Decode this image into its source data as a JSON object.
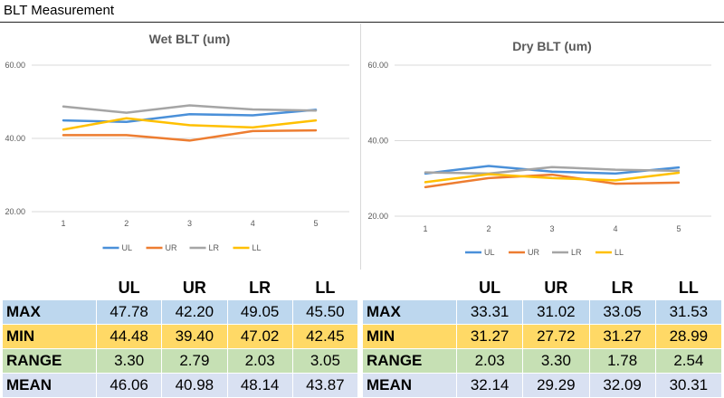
{
  "page_title": "BLT Measurement",
  "colors": {
    "UL": "#4a90d9",
    "UR": "#ed7d31",
    "LR": "#a5a5a5",
    "LL": "#ffc000"
  },
  "chart_data": [
    {
      "type": "line",
      "title": "Wet BLT (um)",
      "xlabel": "",
      "ylabel": "",
      "x": [
        1,
        2,
        3,
        4,
        5
      ],
      "ylim": [
        20,
        60
      ],
      "yticks": [
        "20.00",
        "40.00",
        "60.00"
      ],
      "grid": true,
      "legend": "bottom",
      "series": [
        {
          "name": "UL",
          "values": [
            44.9,
            44.5,
            46.6,
            46.3,
            47.8
          ]
        },
        {
          "name": "UR",
          "values": [
            40.9,
            40.9,
            39.4,
            42.0,
            42.2
          ]
        },
        {
          "name": "LR",
          "values": [
            48.7,
            47.0,
            49.0,
            47.9,
            47.6
          ]
        },
        {
          "name": "LL",
          "values": [
            42.4,
            45.5,
            43.6,
            43.0,
            44.9
          ]
        }
      ]
    },
    {
      "type": "line",
      "title": "Dry BLT (um)",
      "xlabel": "",
      "ylabel": "",
      "x": [
        1,
        2,
        3,
        4,
        5
      ],
      "ylim": [
        20,
        60
      ],
      "yticks": [
        "20.00",
        "40.00",
        "60.00"
      ],
      "grid": true,
      "legend": "bottom",
      "series": [
        {
          "name": "UL",
          "values": [
            31.3,
            33.3,
            31.8,
            31.3,
            32.9
          ]
        },
        {
          "name": "UR",
          "values": [
            27.7,
            30.1,
            31.0,
            28.6,
            28.9
          ]
        },
        {
          "name": "LR",
          "values": [
            31.6,
            31.3,
            33.0,
            32.3,
            32.0
          ]
        },
        {
          "name": "LL",
          "values": [
            29.0,
            31.1,
            30.1,
            29.5,
            31.5
          ]
        }
      ]
    }
  ],
  "tables": {
    "wet": {
      "headers": [
        "",
        "UL",
        "UR",
        "LR",
        "LL"
      ],
      "rows": [
        {
          "label": "MAX",
          "values": [
            "47.78",
            "42.20",
            "49.05",
            "45.50"
          ]
        },
        {
          "label": "MIN",
          "values": [
            "44.48",
            "39.40",
            "47.02",
            "42.45"
          ]
        },
        {
          "label": "RANGE",
          "values": [
            "3.30",
            "2.79",
            "2.03",
            "3.05"
          ]
        },
        {
          "label": "MEAN",
          "values": [
            "46.06",
            "40.98",
            "48.14",
            "43.87"
          ]
        }
      ]
    },
    "dry": {
      "headers": [
        "",
        "UL",
        "UR",
        "LR",
        "LL"
      ],
      "rows": [
        {
          "label": "MAX",
          "values": [
            "33.31",
            "31.02",
            "33.05",
            "31.53"
          ]
        },
        {
          "label": "MIN",
          "values": [
            "31.27",
            "27.72",
            "31.27",
            "28.99"
          ]
        },
        {
          "label": "RANGE",
          "values": [
            "2.03",
            "3.30",
            "1.78",
            "2.54"
          ]
        },
        {
          "label": "MEAN",
          "values": [
            "32.14",
            "29.29",
            "32.09",
            "30.31"
          ]
        }
      ]
    }
  }
}
